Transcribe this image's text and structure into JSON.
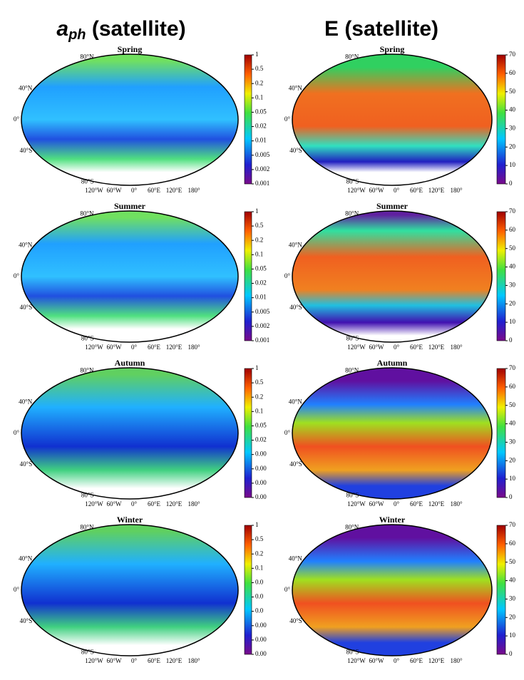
{
  "columns": [
    {
      "title": {
        "symbol": "a",
        "subscript": "ph",
        "text": " (satellite)"
      },
      "panels": [
        {
          "title": "Spring",
          "colorbar_ticks": [
            "1",
            "0.5",
            "0.2",
            "0.1",
            "0.05",
            "0.02",
            "0.01",
            "0.005",
            "0.002",
            "0.001"
          ]
        },
        {
          "title": "Summer",
          "colorbar_ticks": [
            "1",
            "0.5",
            "0.2",
            "0.1",
            "0.05",
            "0.02",
            "0.01",
            "0.005",
            "0.002",
            "0.001"
          ]
        },
        {
          "title": "Autumn",
          "colorbar_ticks": [
            "1",
            "0.5",
            "0.2",
            "0.1",
            "0.05",
            "0.02",
            "0.00",
            "0.00",
            "0.00",
            "0.00"
          ]
        },
        {
          "title": "Winter",
          "colorbar_ticks": [
            "1",
            "0.5",
            "0.2",
            "0.1",
            "0.0",
            "0.0",
            "0.0",
            "0.00",
            "0.00",
            "0.00"
          ]
        }
      ]
    },
    {
      "title": {
        "text": "E (satellite)"
      },
      "panels": [
        {
          "title": "Spring",
          "colorbar_ticks": [
            "70",
            "60",
            "50",
            "40",
            "30",
            "20",
            "10",
            "0"
          ]
        },
        {
          "title": "Summer",
          "colorbar_ticks": [
            "70",
            "60",
            "50",
            "40",
            "30",
            "20",
            "10",
            "0"
          ]
        },
        {
          "title": "Autumn",
          "colorbar_ticks": [
            "70",
            "60",
            "50",
            "40",
            "30",
            "20",
            "10",
            "0"
          ]
        },
        {
          "title": "Winter",
          "colorbar_ticks": [
            "70",
            "60",
            "50",
            "40",
            "30",
            "20",
            "10",
            "0"
          ]
        }
      ]
    }
  ],
  "latitude_labels": [
    "80°N",
    "40°N",
    "0°",
    "40°S",
    "80°S"
  ],
  "longitude_labels": [
    "120°W",
    "60°W",
    "0°",
    "60°E",
    "120°E",
    "180°"
  ]
}
